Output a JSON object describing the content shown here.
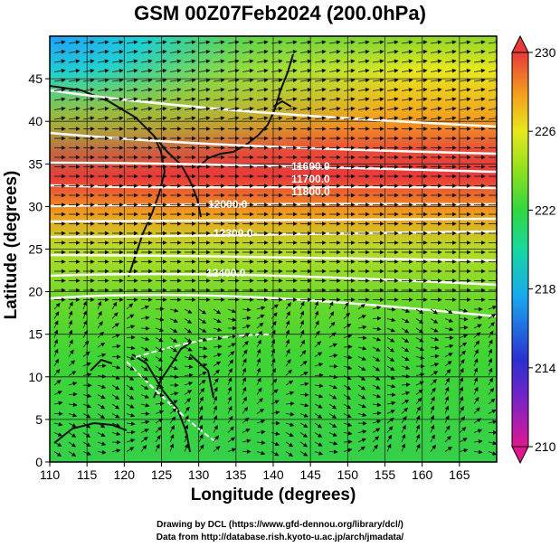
{
  "title": "GSM 00Z07Feb2024 (200.0hPa)",
  "x_axis_label": "Longitude (degrees)",
  "y_axis_label": "Latitude  (degrees)",
  "credits": {
    "line1": "Drawing by DCL (https://www.gfd-dennou.org/library/dcl/)",
    "line2": "Data from http://database.rish.kyoto-u.ac.jp/arch/jmadata/"
  },
  "chart_data": {
    "type": "heatmap",
    "xlim": [
      110,
      170
    ],
    "ylim": [
      0,
      50
    ],
    "x_ticks": [
      110,
      115,
      120,
      125,
      130,
      135,
      140,
      145,
      150,
      155,
      160,
      165
    ],
    "y_ticks": [
      0,
      5,
      10,
      15,
      20,
      25,
      30,
      35,
      40,
      45
    ],
    "grid": true,
    "colorbar": {
      "min": 210,
      "max": 230,
      "ticks": [
        210,
        214,
        218,
        222,
        226,
        230
      ],
      "colors": [
        "#e01890",
        "#2a30d0",
        "#19a8ee",
        "#18d878",
        "#66dd1c",
        "#e8e81e",
        "#f39a1e",
        "#e83a3a"
      ]
    },
    "contour_labels": [
      "11600.0",
      "11700.0",
      "11800.0",
      "12000.0",
      "12300.0",
      "12400.0"
    ],
    "overlays": [
      "temperature shading",
      "wind vectors",
      "geopotential height contours",
      "coastlines"
    ]
  }
}
